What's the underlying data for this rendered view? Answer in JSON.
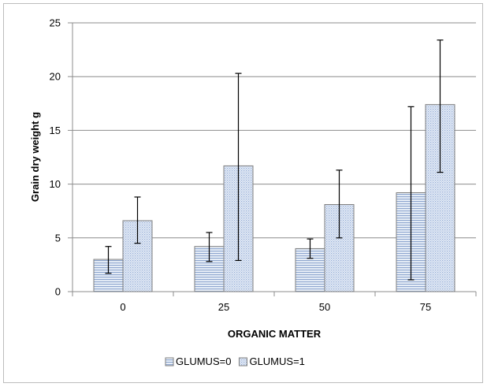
{
  "chart_data": {
    "type": "bar",
    "xlabel": "ORGANIC MATTER",
    "ylabel": "Grain dry weight g",
    "categories": [
      "0",
      "25",
      "50",
      "75"
    ],
    "ylim": [
      0,
      25
    ],
    "yticks": [
      0,
      5,
      10,
      15,
      20,
      25
    ],
    "grid": true,
    "legend_position": "bottom",
    "series": [
      {
        "name": "GLUMUS=0",
        "values": [
          3.0,
          4.2,
          4.0,
          9.2
        ],
        "error_low": [
          1.7,
          2.8,
          3.1,
          1.1
        ],
        "error_high": [
          4.2,
          5.5,
          4.9,
          17.2
        ],
        "pattern": "horizontal-lines",
        "color": "#9db3d6"
      },
      {
        "name": "GLUMUS=1",
        "values": [
          6.6,
          11.7,
          8.1,
          17.4
        ],
        "error_low": [
          4.5,
          2.9,
          5.0,
          11.1
        ],
        "error_high": [
          8.8,
          20.3,
          11.3,
          23.4
        ],
        "pattern": "dots",
        "color": "#a6bcdc"
      }
    ]
  }
}
